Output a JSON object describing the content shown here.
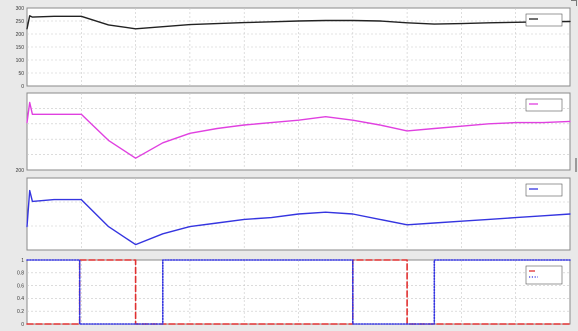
{
  "chart_data": [
    {
      "type": "line",
      "ylim": [
        0,
        300
      ],
      "yticks": [
        "0",
        "50",
        "100",
        "150",
        "200",
        "250",
        "300"
      ],
      "grid": true,
      "legend_position": "top-right",
      "series": [
        {
          "name": "",
          "color": "#222222",
          "x": [
            0,
            0.5,
            1,
            5,
            10,
            15,
            20,
            25,
            30,
            35,
            40,
            45,
            50,
            55,
            60,
            65,
            70,
            75,
            80,
            85,
            90,
            95,
            100
          ],
          "y": [
            220,
            270,
            265,
            268,
            268,
            235,
            220,
            228,
            236,
            240,
            244,
            247,
            250,
            252,
            252,
            250,
            243,
            238,
            240,
            243,
            245,
            247,
            248
          ]
        }
      ]
    },
    {
      "type": "line",
      "ylim": [
        195,
        260
      ],
      "yticks": [
        "200",
        "",
        "",
        "",
        "",
        ""
      ],
      "grid": true,
      "legend_position": "top-right",
      "series": [
        {
          "name": "",
          "color": "#e040e0",
          "x": [
            0,
            0.5,
            1,
            5,
            10,
            15,
            20,
            25,
            30,
            35,
            40,
            45,
            50,
            55,
            60,
            65,
            70,
            75,
            80,
            85,
            90,
            95,
            100
          ],
          "y": [
            235,
            252,
            242,
            242,
            242,
            220,
            205,
            218,
            226,
            230,
            233,
            235,
            237,
            240,
            237,
            233,
            228,
            230,
            232,
            234,
            235,
            235,
            236
          ]
        }
      ]
    },
    {
      "type": "line",
      "ylim": [
        245,
        285
      ],
      "yticks": [
        "",
        "",
        "",
        ""
      ],
      "grid": true,
      "legend_position": "top-right",
      "series": [
        {
          "name": "",
          "color": "#3535e0",
          "x": [
            0,
            0.5,
            1,
            5,
            10,
            15,
            20,
            25,
            30,
            35,
            40,
            45,
            50,
            55,
            60,
            65,
            70,
            75,
            80,
            85,
            90,
            95,
            100
          ],
          "y": [
            258,
            278,
            272,
            273,
            273,
            258,
            248,
            254,
            258,
            260,
            262,
            263,
            265,
            266,
            265,
            262,
            259,
            260,
            261,
            262,
            263,
            264,
            265
          ]
        }
      ]
    },
    {
      "type": "line",
      "ylim": [
        0,
        1
      ],
      "yticks": [
        "0",
        "0.2",
        "0.4",
        "0.6",
        "0.8",
        "1"
      ],
      "grid": true,
      "legend_position": "top-right",
      "series": [
        {
          "name": "",
          "color": "#e03030",
          "dash": "dash",
          "x": [
            0,
            9.7,
            9.7,
            20,
            20,
            60,
            60,
            70,
            70,
            100
          ],
          "y": [
            0,
            0,
            1,
            1,
            0,
            0,
            1,
            1,
            0,
            0
          ]
        },
        {
          "name": "",
          "color": "#3535e0",
          "dash": "dot",
          "x": [
            0,
            9.7,
            9.7,
            25,
            25,
            60,
            60,
            75,
            75,
            100
          ],
          "y": [
            1,
            1,
            0,
            0,
            1,
            1,
            0,
            0,
            1,
            1
          ]
        }
      ]
    }
  ]
}
